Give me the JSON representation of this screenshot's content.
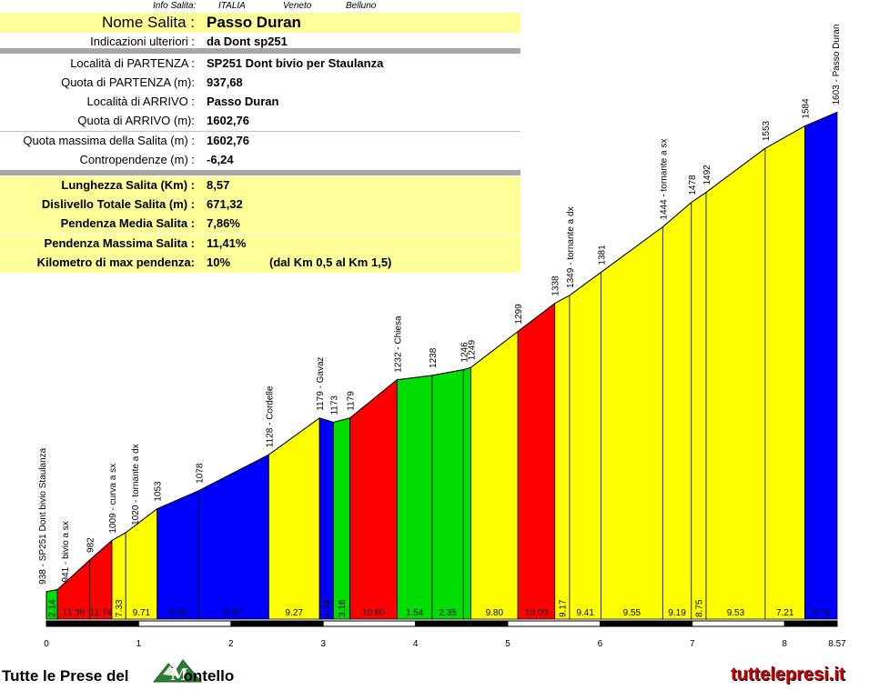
{
  "info": {
    "header": {
      "label": "Info Salita:",
      "country": "ITALIA",
      "region": "Veneto",
      "province": "Belluno"
    },
    "name_label": "Nome Salita :",
    "name_value": "Passo Duran",
    "rows": [
      {
        "label": "Indicazioni ulteriori :",
        "value": "da Dont sp251"
      },
      {
        "label": "Località di PARTENZA :",
        "value": "SP251 Dont bivio per Staulanza"
      },
      {
        "label": "Quota di PARTENZA (m):",
        "value": "937,68"
      },
      {
        "label": "Località di ARRIVO :",
        "value": "Passo Duran"
      },
      {
        "label": "Quota di ARRIVO (m):",
        "value": "1602,76"
      },
      {
        "label": "Quota massima della Salita (m) :",
        "value": "1602,76"
      },
      {
        "label": "Contropendenze (m) :",
        "value": "-6,24"
      }
    ],
    "stats": [
      {
        "label": "Lunghezza Salita (Km) :",
        "value": "8,57"
      },
      {
        "label": "Dislivello Totale Salita (m) :",
        "value": "671,32"
      },
      {
        "label": "Pendenza Media Salita :",
        "value": "7,86%"
      },
      {
        "label": "Pendenza Massima Salita :",
        "value": "11,41%"
      },
      {
        "label": "Kilometro di max pendenza:",
        "value": "10%",
        "extra": "(dal Km 0,5 al Km 1,5)"
      }
    ]
  },
  "footer": {
    "left_text_a": "Tutte le Prese del",
    "left_text_b": "ontello",
    "right_text": "tuttelepresi.it"
  },
  "chart_data": {
    "type": "area",
    "title": "",
    "xlabel": "",
    "ylabel": "",
    "xlim": [
      0,
      8.57
    ],
    "ylim": [
      900,
      1650
    ],
    "x_ticks": [
      "0",
      "1",
      "2",
      "3",
      "4",
      "5",
      "6",
      "7",
      "8",
      "8.57"
    ],
    "x_tick_values": [
      0,
      1,
      2,
      3,
      4,
      5,
      6,
      7,
      8,
      8.57
    ],
    "points": [
      {
        "km": 0.0,
        "alt": 938,
        "label": "938 - SP251 Dont bivio Staulanza"
      },
      {
        "km": 0.12,
        "alt": 941,
        "label": "941 - bivio a sx"
      },
      {
        "km": 0.47,
        "alt": 982,
        "label": "982"
      },
      {
        "km": 0.71,
        "alt": 1009,
        "label": "1009 - curva a sx"
      },
      {
        "km": 0.86,
        "alt": 1020,
        "label": "1020 - tornante a dx"
      },
      {
        "km": 1.2,
        "alt": 1053,
        "label": "1053"
      },
      {
        "km": 1.65,
        "alt": 1078,
        "label": "1078"
      },
      {
        "km": 2.41,
        "alt": 1128,
        "label": "1128 - Cordelle"
      },
      {
        "km": 2.96,
        "alt": 1179,
        "label": "1179 - Gavaz"
      },
      {
        "km": 3.11,
        "alt": 1173,
        "label": "1173"
      },
      {
        "km": 3.29,
        "alt": 1179,
        "label": "1179"
      },
      {
        "km": 3.8,
        "alt": 1232,
        "label": "1232 - Chiesa"
      },
      {
        "km": 4.18,
        "alt": 1238,
        "label": "1238"
      },
      {
        "km": 4.52,
        "alt": 1246,
        "label": "1246"
      },
      {
        "km": 4.6,
        "alt": 1249,
        "label": "1249"
      },
      {
        "km": 5.11,
        "alt": 1299,
        "label": "1299"
      },
      {
        "km": 5.51,
        "alt": 1338,
        "label": "1338"
      },
      {
        "km": 5.67,
        "alt": 1349,
        "label": "1349 - tornante a dx"
      },
      {
        "km": 6.01,
        "alt": 1381,
        "label": "1381"
      },
      {
        "km": 6.68,
        "alt": 1444,
        "label": "1444 - tornante a sx"
      },
      {
        "km": 6.99,
        "alt": 1478,
        "label": "1478"
      },
      {
        "km": 7.15,
        "alt": 1492,
        "label": "1492"
      },
      {
        "km": 7.79,
        "alt": 1553,
        "label": "1553"
      },
      {
        "km": 8.22,
        "alt": 1584,
        "label": "1584"
      },
      {
        "km": 8.57,
        "alt": 1603,
        "label": "1603 - Passo Duran"
      }
    ],
    "segment_gradients": [
      "2.14",
      "11.39",
      "11.74",
      "7.33",
      "9.71",
      "5.56",
      "6.67",
      "9.27",
      "1.18",
      "3.16",
      "10.60",
      "1.54",
      "2.35",
      "",
      "9.80",
      "10.00",
      "9.17",
      "9.41",
      "9.55",
      "9.19",
      "8.75",
      "9.53",
      "7.21",
      "5.76"
    ],
    "segment_colors": [
      "#00dd00",
      "#ff0000",
      "#ff0000",
      "#ffff00",
      "#ffff00",
      "#0000ff",
      "#0000ff",
      "#ffff00",
      "#0000ff",
      "#00dd00",
      "#ff0000",
      "#00dd00",
      "#00dd00",
      "#00dd00",
      "#ffff00",
      "#ff0000",
      "#ffff00",
      "#ffff00",
      "#ffff00",
      "#ffff00",
      "#ffff00",
      "#ffff00",
      "#ffff00",
      "#0000ff"
    ]
  }
}
